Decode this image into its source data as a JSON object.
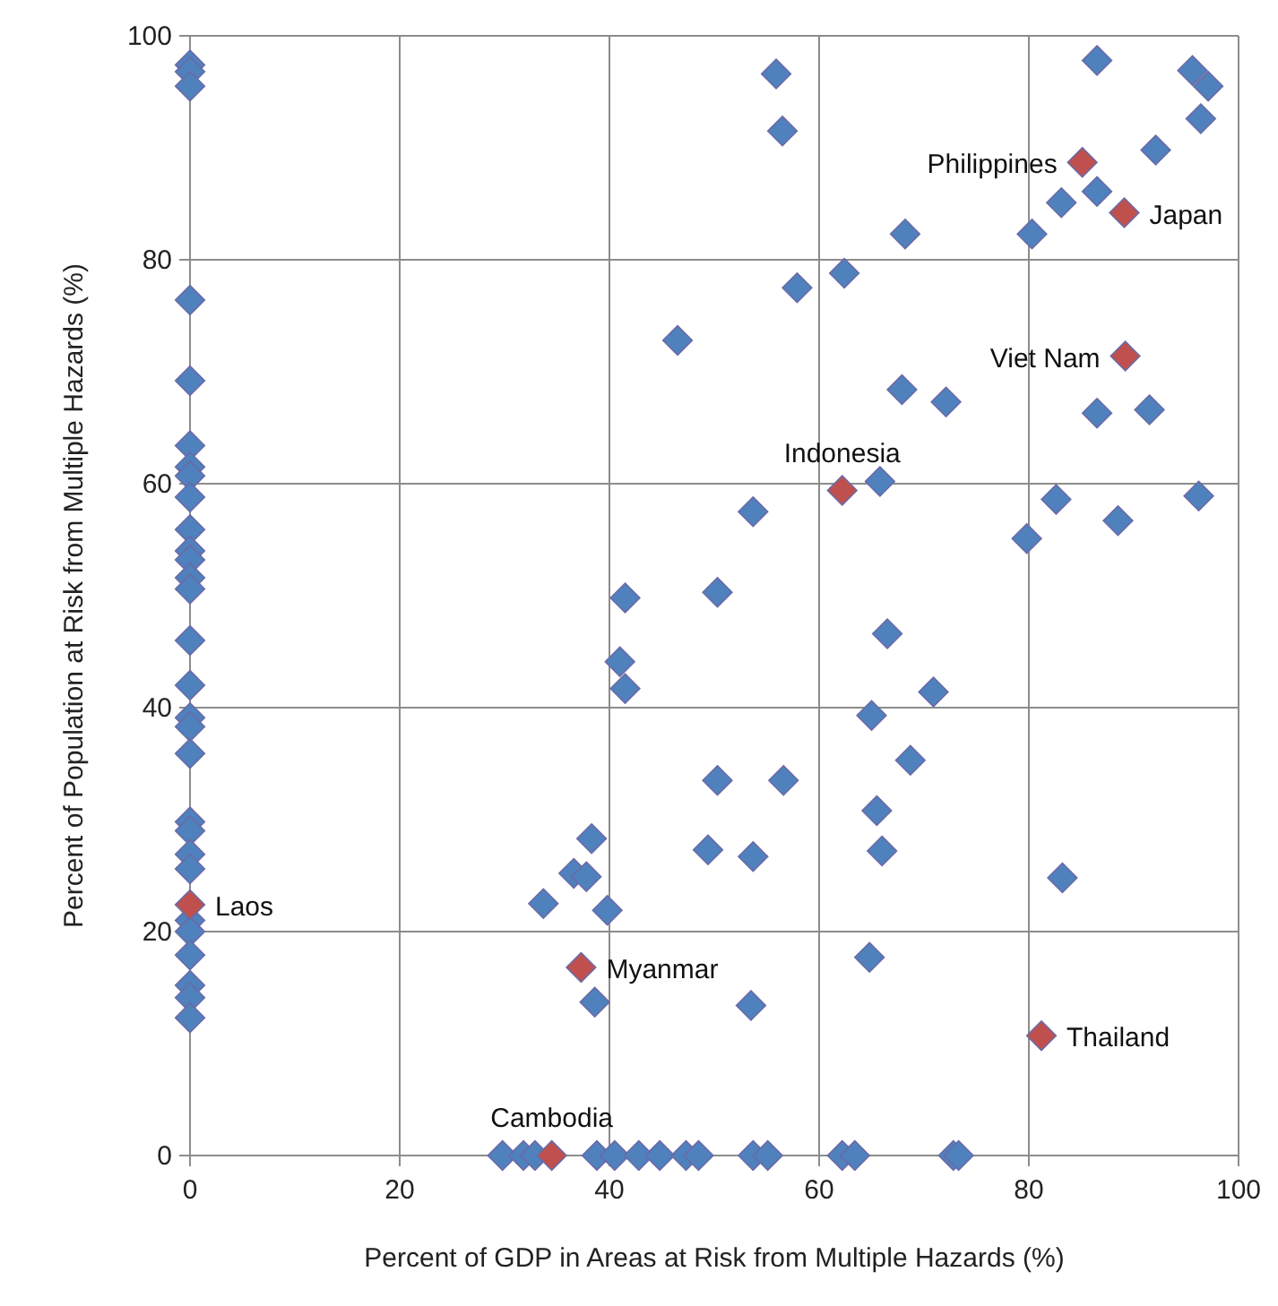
{
  "chart_data": {
    "type": "scatter",
    "xlabel": "Percent of GDP in Areas at Risk from Multiple Hazards (%)",
    "ylabel": "Percent of Population at Risk from Multiple Hazards (%)",
    "xlim": [
      0,
      100
    ],
    "ylim": [
      0,
      100
    ],
    "xticks": [
      0,
      20,
      40,
      60,
      80,
      100
    ],
    "yticks": [
      0,
      20,
      40,
      60,
      80,
      100
    ],
    "grid": true,
    "marker": "diamond",
    "series": [
      {
        "color": "#4f81bd",
        "x": [
          0,
          0,
          0,
          0,
          0,
          0,
          0,
          0,
          0,
          0,
          0,
          0,
          0,
          0,
          0,
          0,
          0,
          0,
          0,
          0,
          0,
          0,
          0,
          0,
          0,
          0,
          0,
          0,
          0,
          55.9,
          56.5,
          86.5,
          95.6,
          97.1,
          96.4,
          92.1,
          86.5,
          83.1,
          80.3,
          68.2,
          62.4,
          57.9,
          46.5,
          67.9,
          72.1,
          86.5,
          91.5,
          65.8,
          53.7,
          79.8,
          82.6,
          88.5,
          96.2,
          41.5,
          50.3,
          66.5,
          41.0,
          41.5,
          70.9,
          65.0,
          68.7,
          50.3,
          56.6,
          65.5,
          66.0,
          49.4,
          53.7,
          83.2,
          38.3,
          36.6,
          37.8,
          33.7,
          39.8,
          64.8,
          38.6,
          53.5,
          29.8,
          31.8,
          32.9,
          38.8,
          40.5,
          42.8,
          44.8,
          47.3,
          48.5,
          53.7,
          55.1,
          62.2,
          63.4,
          72.8,
          73.3
        ],
        "values": [
          97.4,
          96.8,
          95.5,
          76.4,
          69.2,
          63.4,
          61.5,
          60.7,
          58.8,
          55.9,
          54.0,
          53.2,
          51.6,
          50.6,
          46.0,
          42.0,
          39.1,
          38.3,
          35.9,
          29.8,
          29.0,
          26.9,
          25.6,
          21.0,
          20.0,
          17.9,
          15.2,
          14.1,
          12.3,
          96.6,
          91.5,
          97.8,
          96.9,
          95.5,
          92.6,
          89.8,
          86.1,
          85.1,
          82.3,
          82.3,
          78.8,
          77.5,
          72.8,
          68.4,
          67.3,
          66.3,
          66.6,
          60.2,
          57.5,
          55.1,
          58.6,
          56.7,
          58.9,
          49.8,
          50.3,
          46.6,
          44.1,
          41.7,
          41.4,
          39.3,
          35.3,
          33.5,
          33.5,
          30.8,
          27.2,
          27.3,
          26.7,
          24.8,
          28.3,
          25.2,
          24.9,
          22.5,
          21.9,
          17.7,
          13.7,
          13.4,
          0,
          0,
          0,
          0,
          0,
          0,
          0,
          0,
          0,
          0,
          0,
          0,
          0,
          0,
          0
        ]
      },
      {
        "color": "#c0504d",
        "x": [
          85.1,
          89.1,
          89.2,
          62.2,
          0,
          37.3,
          34.5,
          81.2
        ],
        "values": [
          88.7,
          84.2,
          71.4,
          59.4,
          22.4,
          16.8,
          0,
          10.7
        ]
      }
    ],
    "annotations": [
      {
        "text": "Philippines",
        "x": 85.1,
        "y": 88.7
      },
      {
        "text": "Japan",
        "x": 89.1,
        "y": 84.2
      },
      {
        "text": "Viet Nam",
        "x": 89.2,
        "y": 71.4
      },
      {
        "text": "Indonesia",
        "x": 62.2,
        "y": 59.4
      },
      {
        "text": "Laos",
        "x": 0,
        "y": 22.4
      },
      {
        "text": "Myanmar",
        "x": 37.3,
        "y": 16.8
      },
      {
        "text": "Cambodia",
        "x": 34.5,
        "y": 0
      },
      {
        "text": "Thailand",
        "x": 81.2,
        "y": 10.7
      }
    ]
  }
}
